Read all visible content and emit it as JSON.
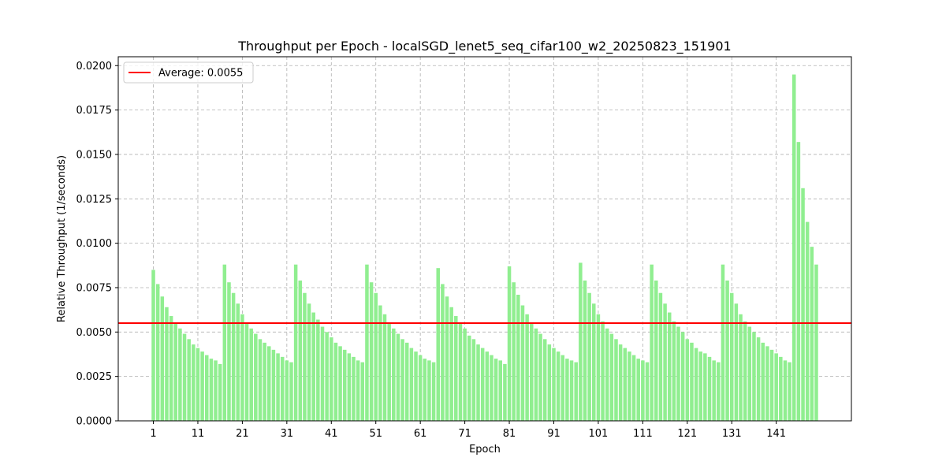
{
  "chart_data": {
    "type": "bar",
    "title": "Throughput per Epoch - localSGD_lenet5_seq_cifar100_w2_20250823_151901",
    "x_label": "Epoch",
    "y_label": "Relative Throughput (1/seconds)",
    "color": "#90ee90",
    "grid": true,
    "legend_position": "upper left",
    "x": [
      1,
      2,
      3,
      4,
      5,
      6,
      7,
      8,
      9,
      10,
      11,
      12,
      13,
      14,
      15,
      16,
      17,
      18,
      19,
      20,
      21,
      22,
      23,
      24,
      25,
      26,
      27,
      28,
      29,
      30,
      31,
      32,
      33,
      34,
      35,
      36,
      37,
      38,
      39,
      40,
      41,
      42,
      43,
      44,
      45,
      46,
      47,
      48,
      49,
      50,
      51,
      52,
      53,
      54,
      55,
      56,
      57,
      58,
      59,
      60,
      61,
      62,
      63,
      64,
      65,
      66,
      67,
      68,
      69,
      70,
      71,
      72,
      73,
      74,
      75,
      76,
      77,
      78,
      79,
      80,
      81,
      82,
      83,
      84,
      85,
      86,
      87,
      88,
      89,
      90,
      91,
      92,
      93,
      94,
      95,
      96,
      97,
      98,
      99,
      100,
      101,
      102,
      103,
      104,
      105,
      106,
      107,
      108,
      109,
      110,
      111,
      112,
      113,
      114,
      115,
      116,
      117,
      118,
      119,
      120,
      121,
      122,
      123,
      124,
      125,
      126,
      127,
      128,
      129,
      130,
      131,
      132,
      133,
      134,
      135,
      136,
      137,
      138,
      139,
      140,
      141,
      142,
      143,
      144,
      145,
      146,
      147,
      148,
      149,
      150
    ],
    "values": [
      0.0085,
      0.0077,
      0.007,
      0.0064,
      0.0059,
      0.0055,
      0.0052,
      0.0049,
      0.0046,
      0.0043,
      0.0041,
      0.0039,
      0.0037,
      0.0035,
      0.0034,
      0.0032,
      0.0088,
      0.0078,
      0.0072,
      0.0066,
      0.006,
      0.0055,
      0.0052,
      0.0049,
      0.0046,
      0.0044,
      0.0042,
      0.004,
      0.0038,
      0.0036,
      0.0034,
      0.0033,
      0.0088,
      0.0079,
      0.0072,
      0.0066,
      0.0061,
      0.0057,
      0.0053,
      0.005,
      0.0047,
      0.0044,
      0.0042,
      0.004,
      0.0038,
      0.0036,
      0.0034,
      0.0033,
      0.0088,
      0.0078,
      0.0072,
      0.0065,
      0.006,
      0.0055,
      0.0052,
      0.0049,
      0.0046,
      0.0044,
      0.0041,
      0.0039,
      0.0037,
      0.0035,
      0.0034,
      0.0033,
      0.0086,
      0.0077,
      0.007,
      0.0064,
      0.0059,
      0.0055,
      0.0052,
      0.0048,
      0.0046,
      0.0043,
      0.0041,
      0.0039,
      0.0037,
      0.0035,
      0.0034,
      0.0032,
      0.0087,
      0.0078,
      0.0071,
      0.0065,
      0.006,
      0.0055,
      0.0052,
      0.0049,
      0.0046,
      0.0043,
      0.0041,
      0.0039,
      0.0037,
      0.0035,
      0.0034,
      0.0033,
      0.0089,
      0.0079,
      0.0072,
      0.0066,
      0.006,
      0.0056,
      0.0052,
      0.0049,
      0.0046,
      0.0043,
      0.0041,
      0.0039,
      0.0037,
      0.0035,
      0.0034,
      0.0033,
      0.0088,
      0.0079,
      0.0072,
      0.0066,
      0.0061,
      0.0056,
      0.0053,
      0.005,
      0.0046,
      0.0044,
      0.0041,
      0.0039,
      0.0038,
      0.0036,
      0.0034,
      0.0033,
      0.0088,
      0.0079,
      0.0072,
      0.0066,
      0.006,
      0.0056,
      0.0053,
      0.005,
      0.0047,
      0.0044,
      0.0042,
      0.004,
      0.0038,
      0.0036,
      0.0034,
      0.0033,
      0.0195,
      0.0157,
      0.0131,
      0.0112,
      0.0098,
      0.0088
    ],
    "average": 0.0055,
    "average_label": "Average: 0.0055",
    "average_color": "#ff0000",
    "xlim": [
      -6.89,
      157.89
    ],
    "ylim": [
      0,
      0.0205
    ],
    "xticks": [
      1,
      11,
      21,
      31,
      41,
      51,
      61,
      71,
      81,
      91,
      101,
      111,
      121,
      131,
      141
    ],
    "yticks": [
      {
        "value": 0,
        "label": "0.0000"
      },
      {
        "value": 0.0025,
        "label": "0.0025"
      },
      {
        "value": 0.005,
        "label": "0.0050"
      },
      {
        "value": 0.0075,
        "label": "0.0075"
      },
      {
        "value": 0.01,
        "label": "0.0100"
      },
      {
        "value": 0.0125,
        "label": "0.0125"
      },
      {
        "value": 0.015,
        "label": "0.0150"
      },
      {
        "value": 0.0175,
        "label": "0.0175"
      },
      {
        "value": 0.02,
        "label": "0.0200"
      }
    ]
  }
}
